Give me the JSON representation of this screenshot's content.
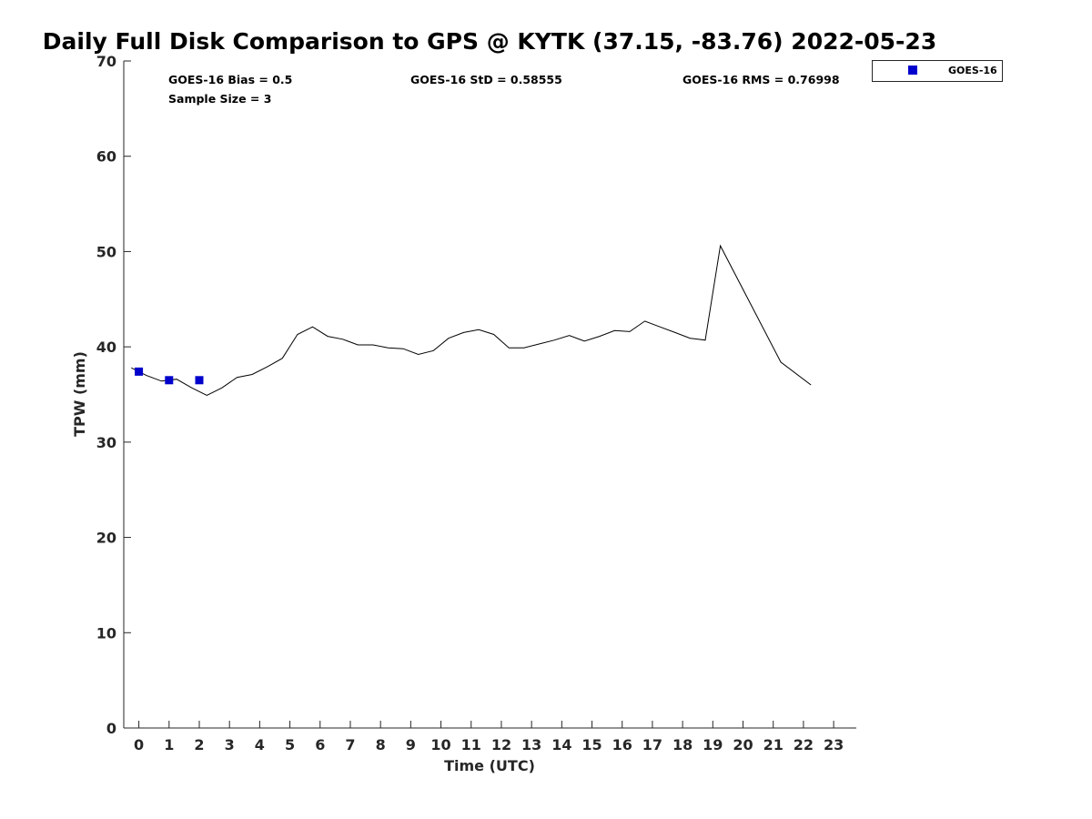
{
  "chart_data": {
    "type": "line",
    "title": "Daily Full Disk Comparison to GPS @ KYTK (37.15, -83.76) 2022-05-23",
    "xlabel": "Time (UTC)",
    "ylabel": "TPW (mm)",
    "xlim": [
      -0.5,
      23.75
    ],
    "ylim": [
      0,
      70
    ],
    "x_ticks": [
      "0",
      "1",
      "2",
      "3",
      "4",
      "5",
      "6",
      "7",
      "8",
      "9",
      "10",
      "11",
      "12",
      "13",
      "14",
      "15",
      "16",
      "17",
      "18",
      "19",
      "20",
      "21",
      "22",
      "23"
    ],
    "y_ticks": [
      "0",
      "10",
      "20",
      "30",
      "40",
      "50",
      "60",
      "70"
    ],
    "grid": false,
    "legend_position": "top-right, outside plot",
    "stats": {
      "bias": "GOES-16 Bias = 0.5",
      "std": "GOES-16 StD = 0.58555",
      "rms": "GOES-16 RMS = 0.76998",
      "sample": "Sample Size = 3"
    },
    "series": [
      {
        "kind": "line",
        "color": "#000000",
        "x": [
          -0.25,
          0.25,
          0.75,
          1.25,
          1.75,
          2.25,
          2.75,
          3.25,
          3.75,
          4.25,
          4.75,
          5.25,
          5.75,
          6.25,
          6.75,
          7.25,
          7.75,
          8.25,
          8.75,
          9.25,
          9.75,
          10.25,
          10.75,
          11.25,
          11.75,
          12.25,
          12.75,
          13.25,
          13.75,
          14.25,
          14.75,
          15.25,
          15.75,
          16.25,
          16.75,
          17.25,
          17.75,
          18.25,
          18.75,
          19.25,
          20.25,
          21.25,
          22.25
        ],
        "y": [
          37.8,
          37.0,
          36.4,
          36.6,
          35.7,
          34.9,
          35.7,
          36.8,
          37.1,
          37.9,
          38.8,
          41.3,
          42.1,
          41.1,
          40.8,
          40.2,
          40.2,
          39.9,
          39.8,
          39.2,
          39.6,
          40.9,
          41.5,
          41.8,
          41.3,
          39.9,
          39.9,
          40.3,
          40.7,
          41.2,
          40.6,
          41.1,
          41.7,
          41.6,
          42.7,
          42.1,
          41.5,
          40.9,
          40.7,
          50.6,
          44.5,
          38.4,
          36.0
        ]
      },
      {
        "name": "GOES-16",
        "kind": "marker",
        "color": "#0000CC",
        "x": [
          0,
          1,
          2
        ],
        "y": [
          37.4,
          36.5,
          36.5
        ]
      }
    ]
  }
}
